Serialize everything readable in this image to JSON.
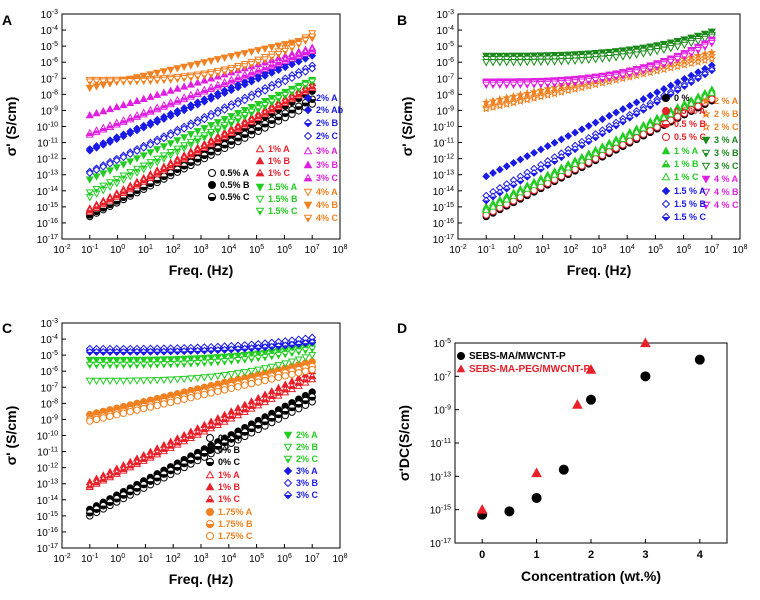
{
  "chart_data": [
    {
      "panel": "A",
      "type": "scatter",
      "xlabel": "Freq. (Hz)",
      "ylabel": "σ' (S/cm)",
      "x_scale": "log",
      "y_scale": "log",
      "xlim_exp": [
        -2,
        8
      ],
      "ylim_exp": [
        -17,
        -3
      ],
      "x_ticks": [
        "10-2",
        "10-1",
        "100",
        "101",
        "102",
        "103",
        "104",
        "105",
        "106",
        "107",
        "108"
      ],
      "y_ticks": [
        "10-17",
        "10-16",
        "10-15",
        "10-14",
        "10-13",
        "10-12",
        "10-11",
        "10-10",
        "10-9",
        "10-8",
        "10-7",
        "10-6",
        "10-5",
        "10-4",
        "10-3"
      ],
      "series": [
        {
          "name": "0.5% A",
          "color": "#000000",
          "marker": "circle",
          "fill": "open",
          "start": -15.6,
          "end": -8.6
        },
        {
          "name": "0.5% B",
          "color": "#000000",
          "marker": "circle",
          "fill": "filled",
          "start": -15.4,
          "end": -7.8
        },
        {
          "name": "0.5% C",
          "color": "#000000",
          "marker": "circle",
          "fill": "half",
          "start": -15.5,
          "end": -8.3
        },
        {
          "name": "1% A",
          "color": "#e8202a",
          "marker": "triangle-up",
          "fill": "open",
          "start": -15.3,
          "end": -7.6
        },
        {
          "name": "1% B",
          "color": "#e8202a",
          "marker": "triangle-up",
          "fill": "filled",
          "start": -15.1,
          "end": -7.3
        },
        {
          "name": "1% C",
          "color": "#e8202a",
          "marker": "triangle-up",
          "fill": "half",
          "start": -15.2,
          "end": -7.5
        },
        {
          "name": "1.5% A",
          "color": "#22cc22",
          "marker": "triangle-down",
          "fill": "filled",
          "start": -13.3,
          "end": -7.1
        },
        {
          "name": "1.5% B",
          "color": "#22cc22",
          "marker": "triangle-down",
          "fill": "open",
          "start": -14.4,
          "end": -7.2
        },
        {
          "name": "1.5% C",
          "color": "#22cc22",
          "marker": "triangle-down",
          "fill": "half",
          "start": -14.1,
          "end": -7.2
        },
        {
          "name": "2% A",
          "color": "#1a1ae6",
          "marker": "diamond",
          "fill": "filled",
          "start": -11.5,
          "end": -5.6
        },
        {
          "name": "2% Ab",
          "color": "#1a1ae6",
          "marker": "diamond",
          "fill": "filled",
          "start": -11.4,
          "end": -5.4
        },
        {
          "name": "2% B",
          "color": "#1a1ae6",
          "marker": "diamond",
          "fill": "half",
          "start": -12.8,
          "end": -6.2
        },
        {
          "name": "2% C",
          "color": "#1a1ae6",
          "marker": "diamond",
          "fill": "open",
          "start": -12.9,
          "end": -6.4
        },
        {
          "name": "3% A",
          "color": "#e020e0",
          "marker": "triangle-up",
          "fill": "open",
          "start": -10.5,
          "end": -5.3
        },
        {
          "name": "3% B",
          "color": "#e020e0",
          "marker": "triangle-up",
          "fill": "filled",
          "start": -9.3,
          "end": -5.1
        },
        {
          "name": "3% C",
          "color": "#e020e0",
          "marker": "triangle-up",
          "fill": "half",
          "start": -10.4,
          "end": -5.2
        },
        {
          "name": "4% A",
          "color": "#f08020",
          "marker": "triangle-down",
          "fill": "open",
          "start": -7.1,
          "end": -4.2
        },
        {
          "name": "4% B",
          "color": "#f08020",
          "marker": "triangle-down",
          "fill": "filled",
          "start": -7.6,
          "end": -4.5
        },
        {
          "name": "4% C",
          "color": "#f08020",
          "marker": "triangle-down",
          "fill": "half",
          "start": -7.2,
          "end": -4.4
        }
      ]
    },
    {
      "panel": "B",
      "type": "scatter",
      "xlabel": "Freq. (Hz)",
      "ylabel": "σ' (S/cm)",
      "x_scale": "log",
      "y_scale": "log",
      "xlim_exp": [
        -2,
        8
      ],
      "ylim_exp": [
        -17,
        -3
      ],
      "x_ticks": [
        "10-2",
        "10-1",
        "100",
        "101",
        "102",
        "103",
        "104",
        "105",
        "106",
        "107",
        "108"
      ],
      "y_ticks": [
        "10-17",
        "10-16",
        "10-15",
        "10-14",
        "10-13",
        "10-12",
        "10-11",
        "10-10",
        "10-9",
        "10-8",
        "10-7",
        "10-6",
        "10-5",
        "10-4",
        "10-3"
      ],
      "series": [
        {
          "name": "2 % A",
          "color": "#f08020",
          "marker": "star",
          "fill": "filled",
          "start": -8.5,
          "end": -5.4
        },
        {
          "name": "2 % B",
          "color": "#f08020",
          "marker": "star",
          "fill": "half",
          "start": -8.8,
          "end": -5.6
        },
        {
          "name": "2 % C",
          "color": "#f08020",
          "marker": "star",
          "fill": "open",
          "start": -8.9,
          "end": -5.8
        },
        {
          "name": "0 %",
          "color": "#000000",
          "marker": "circle",
          "fill": "filled",
          "start": -15.6,
          "end": -8.4
        },
        {
          "name": "0.5 % A",
          "color": "#e8202a",
          "marker": "circle",
          "fill": "filled",
          "start": -15.3,
          "end": -8.1
        },
        {
          "name": "0.5 % B",
          "color": "#e8202a",
          "marker": "circle",
          "fill": "half",
          "start": -15.4,
          "end": -8.2
        },
        {
          "name": "0.5 % C",
          "color": "#e8202a",
          "marker": "circle",
          "fill": "open",
          "start": -15.5,
          "end": -8.3
        },
        {
          "name": "3 % A",
          "color": "#1a8a1a",
          "marker": "triangle-down",
          "fill": "filled",
          "start": -5.6,
          "end": -4.1
        },
        {
          "name": "3 % B",
          "color": "#1a8a1a",
          "marker": "triangle-down",
          "fill": "half",
          "start": -5.8,
          "end": -4.3
        },
        {
          "name": "3 % C",
          "color": "#1a8a1a",
          "marker": "triangle-down",
          "fill": "open",
          "start": -6.0,
          "end": -4.4
        },
        {
          "name": "1 % A",
          "color": "#22cc22",
          "marker": "triangle-up",
          "fill": "filled",
          "start": -15.0,
          "end": -7.7
        },
        {
          "name": "1 % B",
          "color": "#22cc22",
          "marker": "triangle-up",
          "fill": "half",
          "start": -15.1,
          "end": -7.8
        },
        {
          "name": "1 % C",
          "color": "#22cc22",
          "marker": "triangle-up",
          "fill": "open",
          "start": -15.2,
          "end": -7.9
        },
        {
          "name": "4 % A",
          "color": "#e020e0",
          "marker": "triangle-down",
          "fill": "filled",
          "start": -7.2,
          "end": -4.6
        },
        {
          "name": "4 % B",
          "color": "#e020e0",
          "marker": "triangle-down",
          "fill": "open",
          "start": -7.3,
          "end": -4.7
        },
        {
          "name": "4 % C",
          "color": "#e020e0",
          "marker": "triangle-down",
          "fill": "half",
          "start": -7.4,
          "end": -4.8
        },
        {
          "name": "1.5 % A",
          "color": "#1a1ae6",
          "marker": "diamond",
          "fill": "filled",
          "start": -13.1,
          "end": -6.2
        },
        {
          "name": "1.5 % B",
          "color": "#1a1ae6",
          "marker": "diamond",
          "fill": "open",
          "start": -14.3,
          "end": -6.4
        },
        {
          "name": "1.5 % C",
          "color": "#1a1ae6",
          "marker": "diamond",
          "fill": "half",
          "start": -14.6,
          "end": -6.5
        }
      ]
    },
    {
      "panel": "C",
      "type": "scatter",
      "xlabel": "Freq. (Hz)",
      "ylabel": "σ' (S/cm)",
      "x_scale": "log",
      "y_scale": "log",
      "xlim_exp": [
        -2,
        8
      ],
      "ylim_exp": [
        -17,
        -3
      ],
      "x_ticks": [
        "10-2",
        "10-1",
        "100",
        "101",
        "102",
        "103",
        "104",
        "105",
        "106",
        "107",
        "108"
      ],
      "y_ticks": [
        "10-17",
        "10-16",
        "10-15",
        "10-14",
        "10-13",
        "10-12",
        "10-11",
        "10-10",
        "10-9",
        "10-8",
        "10-7",
        "10-6",
        "10-5",
        "10-4",
        "10-3"
      ],
      "series": [
        {
          "name": "0% A",
          "color": "#000000",
          "marker": "circle",
          "fill": "open",
          "start": -15.0,
          "end": -7.9
        },
        {
          "name": "0% B",
          "color": "#000000",
          "marker": "circle",
          "fill": "filled",
          "start": -14.6,
          "end": -7.3
        },
        {
          "name": "0% C",
          "color": "#000000",
          "marker": "circle",
          "fill": "half",
          "start": -14.8,
          "end": -7.6
        },
        {
          "name": "1% A",
          "color": "#e8202a",
          "marker": "triangle-up",
          "fill": "open",
          "start": -13.2,
          "end": -6.5
        },
        {
          "name": "1% B",
          "color": "#e8202a",
          "marker": "triangle-up",
          "fill": "filled",
          "start": -12.9,
          "end": -6.0
        },
        {
          "name": "1% C",
          "color": "#e8202a",
          "marker": "triangle-up",
          "fill": "half",
          "start": -13.1,
          "end": -6.3
        },
        {
          "name": "1.75% A",
          "color": "#f08020",
          "marker": "circle",
          "fill": "filled",
          "start": -8.7,
          "end": -5.4
        },
        {
          "name": "1.75% B",
          "color": "#f08020",
          "marker": "circle",
          "fill": "half",
          "start": -9.0,
          "end": -5.7
        },
        {
          "name": "1.75% C",
          "color": "#f08020",
          "marker": "circle",
          "fill": "open",
          "start": -9.1,
          "end": -5.9
        },
        {
          "name": "2% A",
          "color": "#22cc22",
          "marker": "triangle-down",
          "fill": "filled",
          "start": -5.3,
          "end": -4.4
        },
        {
          "name": "2% B",
          "color": "#22cc22",
          "marker": "triangle-down",
          "fill": "open",
          "start": -6.6,
          "end": -5.0
        },
        {
          "name": "2% C",
          "color": "#22cc22",
          "marker": "triangle-down",
          "fill": "half",
          "start": -5.6,
          "end": -4.6
        },
        {
          "name": "3% A",
          "color": "#1a1ae6",
          "marker": "diamond",
          "fill": "filled",
          "start": -4.7,
          "end": -4.1
        },
        {
          "name": "3% B",
          "color": "#1a1ae6",
          "marker": "diamond",
          "fill": "open",
          "start": -4.6,
          "end": -3.9
        },
        {
          "name": "3% C",
          "color": "#1a1ae6",
          "marker": "diamond",
          "fill": "half",
          "start": -4.8,
          "end": -4.2
        }
      ]
    },
    {
      "panel": "D",
      "type": "scatter",
      "xlabel": "Concentration (wt.%)",
      "ylabel": "σ'DC(S/cm)",
      "x_scale": "linear",
      "y_scale": "log",
      "xlim": [
        -0.5,
        4.5
      ],
      "ylim_exp": [
        -17,
        -5
      ],
      "x_ticks": [
        "0",
        "1",
        "2",
        "3",
        "4"
      ],
      "y_ticks": [
        "10-17",
        "10-15",
        "10-13",
        "10-11",
        "10-9",
        "10-7",
        "10-5"
      ],
      "series": [
        {
          "name": "SEBS-MA/MWCNT-P",
          "color": "#000000",
          "marker": "circle",
          "x": [
            0,
            0.5,
            1,
            1.5,
            2,
            3,
            4
          ],
          "log10_y": [
            -15.3,
            -15.1,
            -14.3,
            -12.6,
            -8.4,
            -7.0,
            -6.0
          ]
        },
        {
          "name": "SEBS-MA-PEG/MWCNT-P",
          "color": "#e8202a",
          "marker": "triangle-up",
          "x": [
            0,
            1,
            1.75,
            2,
            3
          ],
          "log10_y": [
            -15.0,
            -12.8,
            -8.7,
            -6.6,
            -5.0
          ]
        }
      ]
    }
  ]
}
